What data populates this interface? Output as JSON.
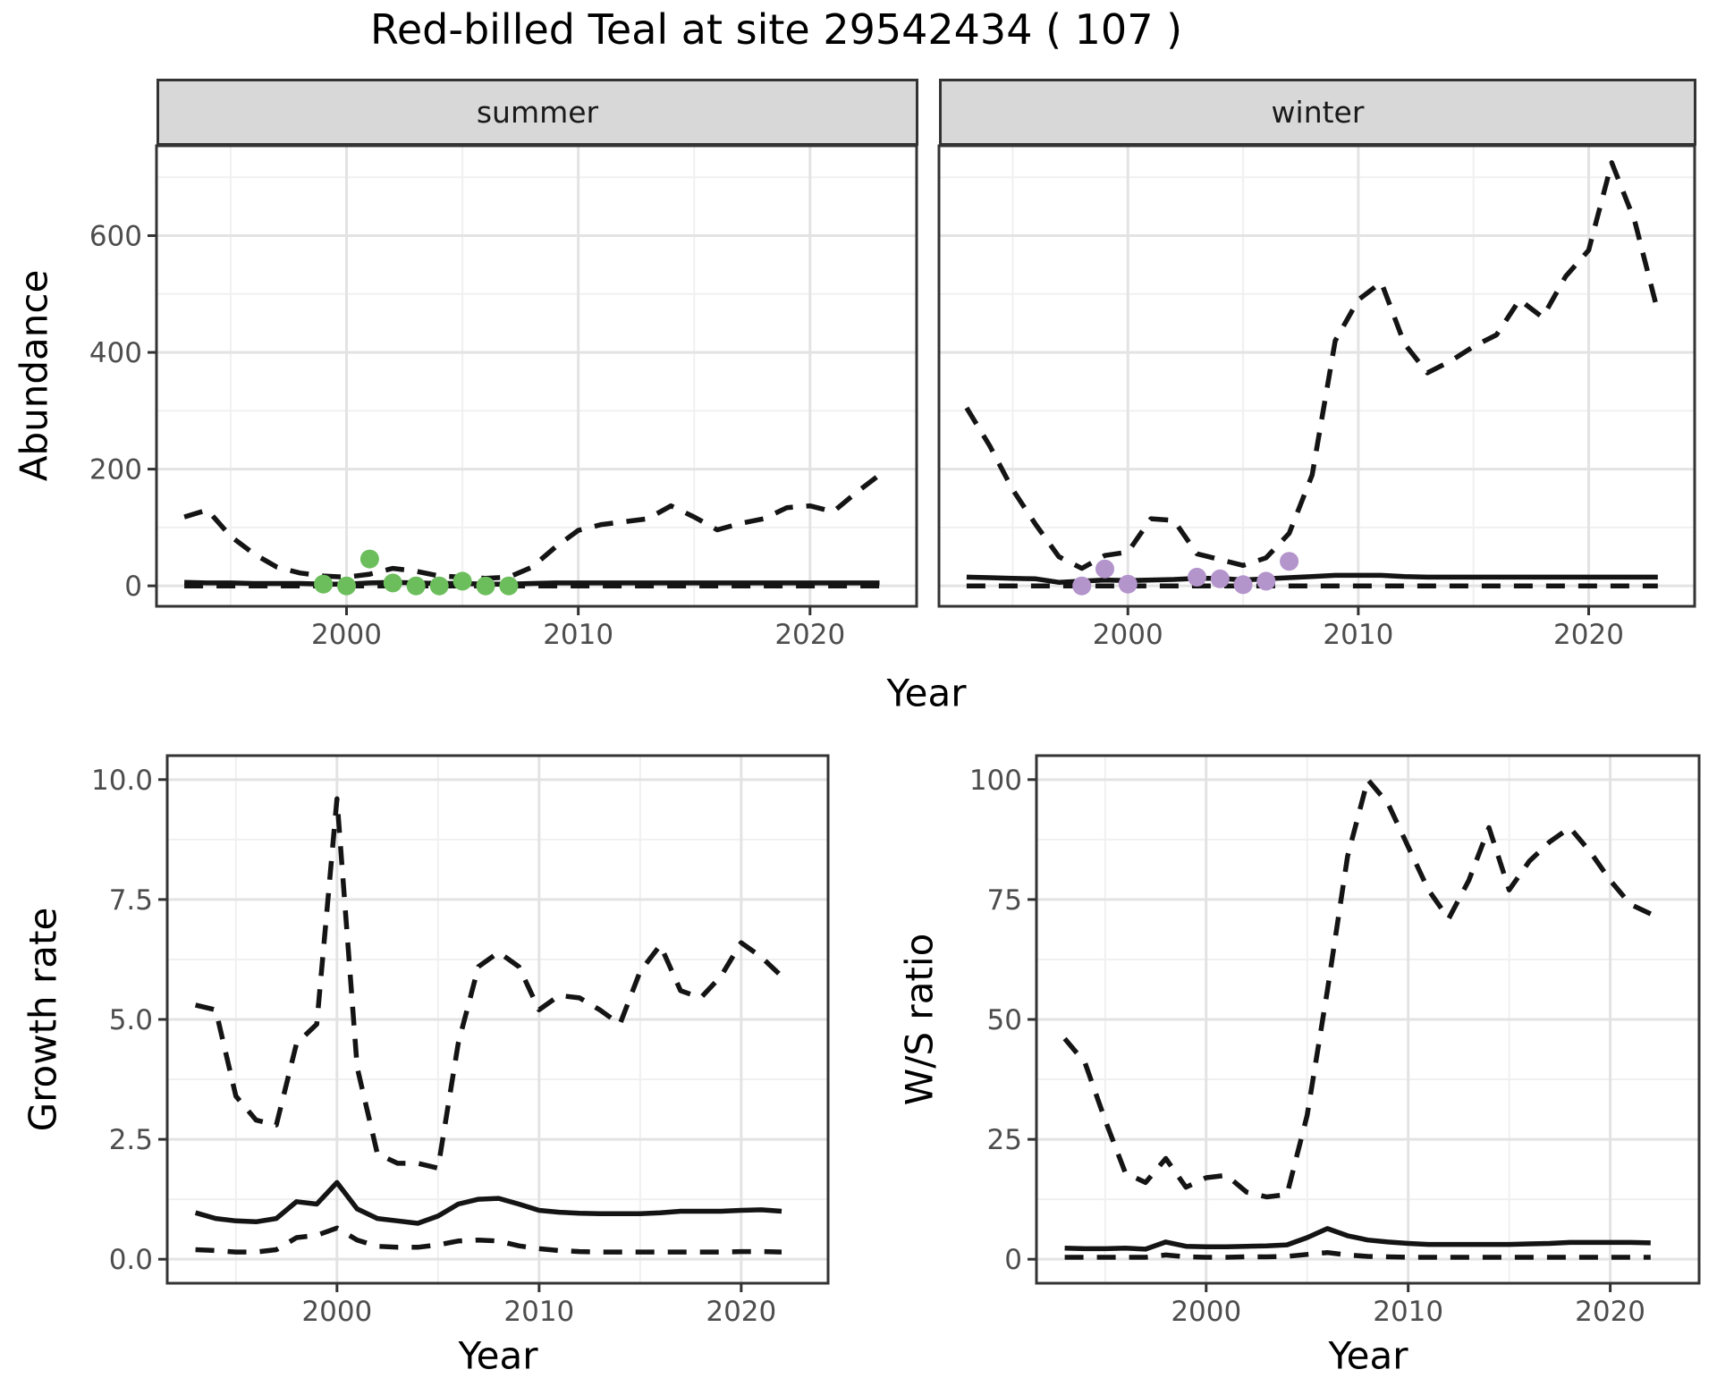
{
  "title": "Red-billed Teal at site 29542434 ( 107 )",
  "facets": {
    "summer": "summer",
    "winter": "winter"
  },
  "axes": {
    "abundance_ylabel": "Abundance",
    "top_xlabel": "Year",
    "growth_ylabel": "Growth rate",
    "growth_xlabel": "Year",
    "ws_ylabel": "W/S ratio",
    "ws_xlabel": "Year"
  },
  "colors": {
    "line": "#141414",
    "summer_point": "#6cbe5c",
    "winter_point": "#b394cb",
    "grid_major": "#e3e3e3",
    "grid_minor": "#f0f0f0",
    "strip_bg": "#d8d8d8",
    "border": "#333333",
    "tick_label": "#4d4d4d"
  },
  "chart_data": [
    {
      "type": "line",
      "facet_key": "summer",
      "title": "summer",
      "xlabel": "Year",
      "ylabel": "Abundance",
      "xlim": [
        1991.8,
        2024.6
      ],
      "ylim": [
        -35,
        754
      ],
      "x_ticks": [
        2000,
        2010,
        2020
      ],
      "x_tick_labels": [
        "2000",
        "2010",
        "2020"
      ],
      "x_minor": [
        1995,
        2005,
        2015
      ],
      "y_ticks": [
        0,
        200,
        400,
        600
      ],
      "y_tick_labels": [
        "0",
        "200",
        "400",
        "600"
      ],
      "y_minor": [
        100,
        300,
        500,
        700
      ],
      "grid": true,
      "legend": "none",
      "x": [
        1993,
        1994,
        1995,
        1996,
        1997,
        1998,
        1999,
        2000,
        2001,
        2002,
        2003,
        2004,
        2005,
        2006,
        2007,
        2008,
        2009,
        2010,
        2011,
        2012,
        2013,
        2014,
        2015,
        2016,
        2017,
        2018,
        2019,
        2020,
        2021,
        2022,
        2023
      ],
      "series": [
        {
          "name": "upper-dashed",
          "style": "dashed",
          "values": [
            118,
            130,
            85,
            55,
            32,
            22,
            17,
            15,
            20,
            30,
            25,
            17,
            15,
            13,
            15,
            32,
            66,
            95,
            105,
            110,
            115,
            137,
            118,
            96,
            107,
            115,
            134,
            137,
            127,
            160,
            190
          ]
        },
        {
          "name": "lower-dashed",
          "style": "dashed",
          "values": [
            0,
            0,
            0,
            0,
            0,
            0,
            0,
            0,
            0,
            0,
            0,
            0,
            0,
            0,
            0,
            0,
            0,
            0,
            0,
            0,
            0,
            0,
            0,
            0,
            0,
            0,
            0,
            0,
            0,
            0,
            0
          ]
        },
        {
          "name": "median-solid",
          "style": "solid",
          "values": [
            6,
            5,
            5,
            4,
            4,
            4,
            3,
            3,
            5,
            6,
            5,
            4,
            4,
            3,
            3,
            4,
            5,
            5,
            5,
            5,
            5,
            5,
            5,
            5,
            5,
            5,
            5,
            5,
            5,
            5,
            5
          ]
        }
      ],
      "points": {
        "name": "observations",
        "color": "#6cbe5c",
        "x": [
          1999,
          2000,
          2001,
          2002,
          2003,
          2004,
          2005,
          2006,
          2007
        ],
        "y": [
          3,
          0,
          46,
          5,
          0,
          0,
          8,
          0,
          0
        ]
      }
    },
    {
      "type": "line",
      "facet_key": "winter",
      "title": "winter",
      "xlabel": "Year",
      "ylabel": "Abundance",
      "xlim": [
        1991.8,
        2024.6
      ],
      "ylim": [
        -35,
        754
      ],
      "x_ticks": [
        2000,
        2010,
        2020
      ],
      "x_tick_labels": [
        "2000",
        "2010",
        "2020"
      ],
      "x_minor": [
        1995,
        2005,
        2015
      ],
      "y_ticks": [
        0,
        200,
        400,
        600
      ],
      "y_tick_labels": [],
      "y_minor": [
        100,
        300,
        500,
        700
      ],
      "grid": true,
      "legend": "none",
      "x": [
        1993,
        1994,
        1995,
        1996,
        1997,
        1998,
        1999,
        2000,
        2001,
        2002,
        2003,
        2004,
        2005,
        2006,
        2007,
        2008,
        2009,
        2010,
        2011,
        2012,
        2013,
        2014,
        2015,
        2016,
        2017,
        2018,
        2019,
        2020,
        2021,
        2022,
        2023
      ],
      "series": [
        {
          "name": "upper-dashed",
          "style": "dashed",
          "values": [
            305,
            240,
            165,
            105,
            50,
            30,
            52,
            58,
            115,
            112,
            55,
            45,
            35,
            48,
            90,
            190,
            420,
            490,
            520,
            415,
            365,
            385,
            410,
            430,
            490,
            460,
            530,
            575,
            725,
            625,
            470
          ]
        },
        {
          "name": "lower-dashed",
          "style": "dashed",
          "values": [
            0,
            0,
            0,
            0,
            0,
            0,
            0,
            0,
            0,
            0,
            0,
            0,
            0,
            0,
            0,
            0,
            0,
            0,
            0,
            0,
            0,
            0,
            0,
            0,
            0,
            0,
            0,
            0,
            0,
            0,
            0
          ]
        },
        {
          "name": "median-solid",
          "style": "solid",
          "values": [
            15,
            14,
            13,
            12,
            6,
            8,
            10,
            9,
            10,
            11,
            13,
            13,
            10,
            12,
            14,
            16,
            18,
            18,
            18,
            16,
            15,
            15,
            15,
            15,
            15,
            15,
            15,
            15,
            15,
            15,
            15
          ]
        }
      ],
      "points": {
        "name": "observations",
        "color": "#b394cb",
        "x": [
          1998,
          1999,
          2000,
          2003,
          2004,
          2005,
          2006,
          2007
        ],
        "y": [
          0,
          29,
          3,
          15,
          12,
          2,
          8,
          42
        ]
      }
    },
    {
      "type": "line",
      "facet_key": "growth-rate",
      "title": "",
      "xlabel": "Year",
      "ylabel": "Growth rate",
      "xlim": [
        1991.6,
        2024.3
      ],
      "ylim": [
        -0.5,
        10.5
      ],
      "x_ticks": [
        2000,
        2010,
        2020
      ],
      "x_tick_labels": [
        "2000",
        "2010",
        "2020"
      ],
      "x_minor": [
        1995,
        2005,
        2015
      ],
      "y_ticks": [
        0,
        2.5,
        5,
        7.5,
        10
      ],
      "y_tick_labels": [
        "0.0",
        "2.5",
        "5.0",
        "7.5",
        "10.0"
      ],
      "y_minor": [
        1.25,
        3.75,
        6.25,
        8.75
      ],
      "grid": true,
      "legend": "none",
      "x": [
        1993,
        1994,
        1995,
        1996,
        1997,
        1998,
        1999,
        2000,
        2001,
        2002,
        2003,
        2004,
        2005,
        2006,
        2007,
        2008,
        2009,
        2010,
        2011,
        2012,
        2013,
        2014,
        2015,
        2016,
        2017,
        2018,
        2019,
        2020,
        2021,
        2022
      ],
      "series": [
        {
          "name": "upper-dashed",
          "style": "dashed",
          "values": [
            5.3,
            5.2,
            3.4,
            2.9,
            2.8,
            4.5,
            4.9,
            9.6,
            4.0,
            2.2,
            2.0,
            2.0,
            1.9,
            4.5,
            6.1,
            6.4,
            6.1,
            5.2,
            5.5,
            5.45,
            5.2,
            4.9,
            6.0,
            6.55,
            5.6,
            5.45,
            5.9,
            6.6,
            6.3,
            5.9
          ]
        },
        {
          "name": "lower-dashed",
          "style": "dashed",
          "values": [
            0.2,
            0.18,
            0.15,
            0.15,
            0.2,
            0.45,
            0.5,
            0.65,
            0.4,
            0.27,
            0.25,
            0.25,
            0.3,
            0.38,
            0.4,
            0.38,
            0.28,
            0.22,
            0.18,
            0.16,
            0.15,
            0.15,
            0.15,
            0.15,
            0.15,
            0.15,
            0.15,
            0.16,
            0.16,
            0.15
          ]
        },
        {
          "name": "median-solid",
          "style": "solid",
          "values": [
            0.97,
            0.85,
            0.8,
            0.78,
            0.85,
            1.2,
            1.15,
            1.6,
            1.05,
            0.85,
            0.8,
            0.75,
            0.9,
            1.15,
            1.25,
            1.27,
            1.15,
            1.02,
            0.98,
            0.96,
            0.95,
            0.95,
            0.95,
            0.97,
            1.0,
            1.0,
            1.0,
            1.02,
            1.03,
            1.0
          ]
        }
      ],
      "points": null
    },
    {
      "type": "line",
      "facet_key": "ws-ratio",
      "title": "",
      "xlabel": "Year",
      "ylabel": "W/S ratio",
      "xlim": [
        1991.6,
        2024.4
      ],
      "ylim": [
        -5,
        105
      ],
      "x_ticks": [
        2000,
        2010,
        2020
      ],
      "x_tick_labels": [
        "2000",
        "2010",
        "2020"
      ],
      "x_minor": [
        1995,
        2005,
        2015
      ],
      "y_ticks": [
        0,
        25,
        50,
        75,
        100
      ],
      "y_tick_labels": [
        "0",
        "25",
        "50",
        "75",
        "100"
      ],
      "y_minor": [
        12.5,
        37.5,
        62.5,
        87.5
      ],
      "grid": true,
      "legend": "none",
      "x": [
        1993,
        1994,
        1995,
        1996,
        1997,
        1998,
        1999,
        2000,
        2001,
        2002,
        2003,
        2004,
        2005,
        2006,
        2007,
        2008,
        2009,
        2010,
        2011,
        2012,
        2013,
        2014,
        2015,
        2016,
        2017,
        2018,
        2019,
        2020,
        2021,
        2022
      ],
      "series": [
        {
          "name": "upper-dashed",
          "style": "dashed",
          "values": [
            46,
            41,
            29,
            18,
            16,
            21,
            15,
            17,
            17.5,
            14,
            13,
            13.5,
            30,
            56,
            84,
            100,
            95,
            86,
            77,
            71,
            79,
            90,
            77,
            83,
            87,
            90,
            85,
            79,
            74,
            72
          ]
        },
        {
          "name": "lower-dashed",
          "style": "dashed",
          "values": [
            0.4,
            0.4,
            0.4,
            0.4,
            0.4,
            0.9,
            0.5,
            0.4,
            0.4,
            0.5,
            0.5,
            0.6,
            1.0,
            1.4,
            0.9,
            0.6,
            0.5,
            0.4,
            0.4,
            0.4,
            0.4,
            0.4,
            0.4,
            0.4,
            0.4,
            0.4,
            0.4,
            0.4,
            0.4,
            0.4
          ]
        },
        {
          "name": "median-solid",
          "style": "solid",
          "values": [
            2.3,
            2.2,
            2.2,
            2.3,
            2.1,
            3.6,
            2.7,
            2.6,
            2.6,
            2.7,
            2.8,
            3.0,
            4.5,
            6.4,
            4.9,
            4.0,
            3.6,
            3.3,
            3.1,
            3.1,
            3.1,
            3.1,
            3.1,
            3.2,
            3.3,
            3.5,
            3.5,
            3.5,
            3.5,
            3.4
          ]
        }
      ],
      "points": null
    }
  ]
}
